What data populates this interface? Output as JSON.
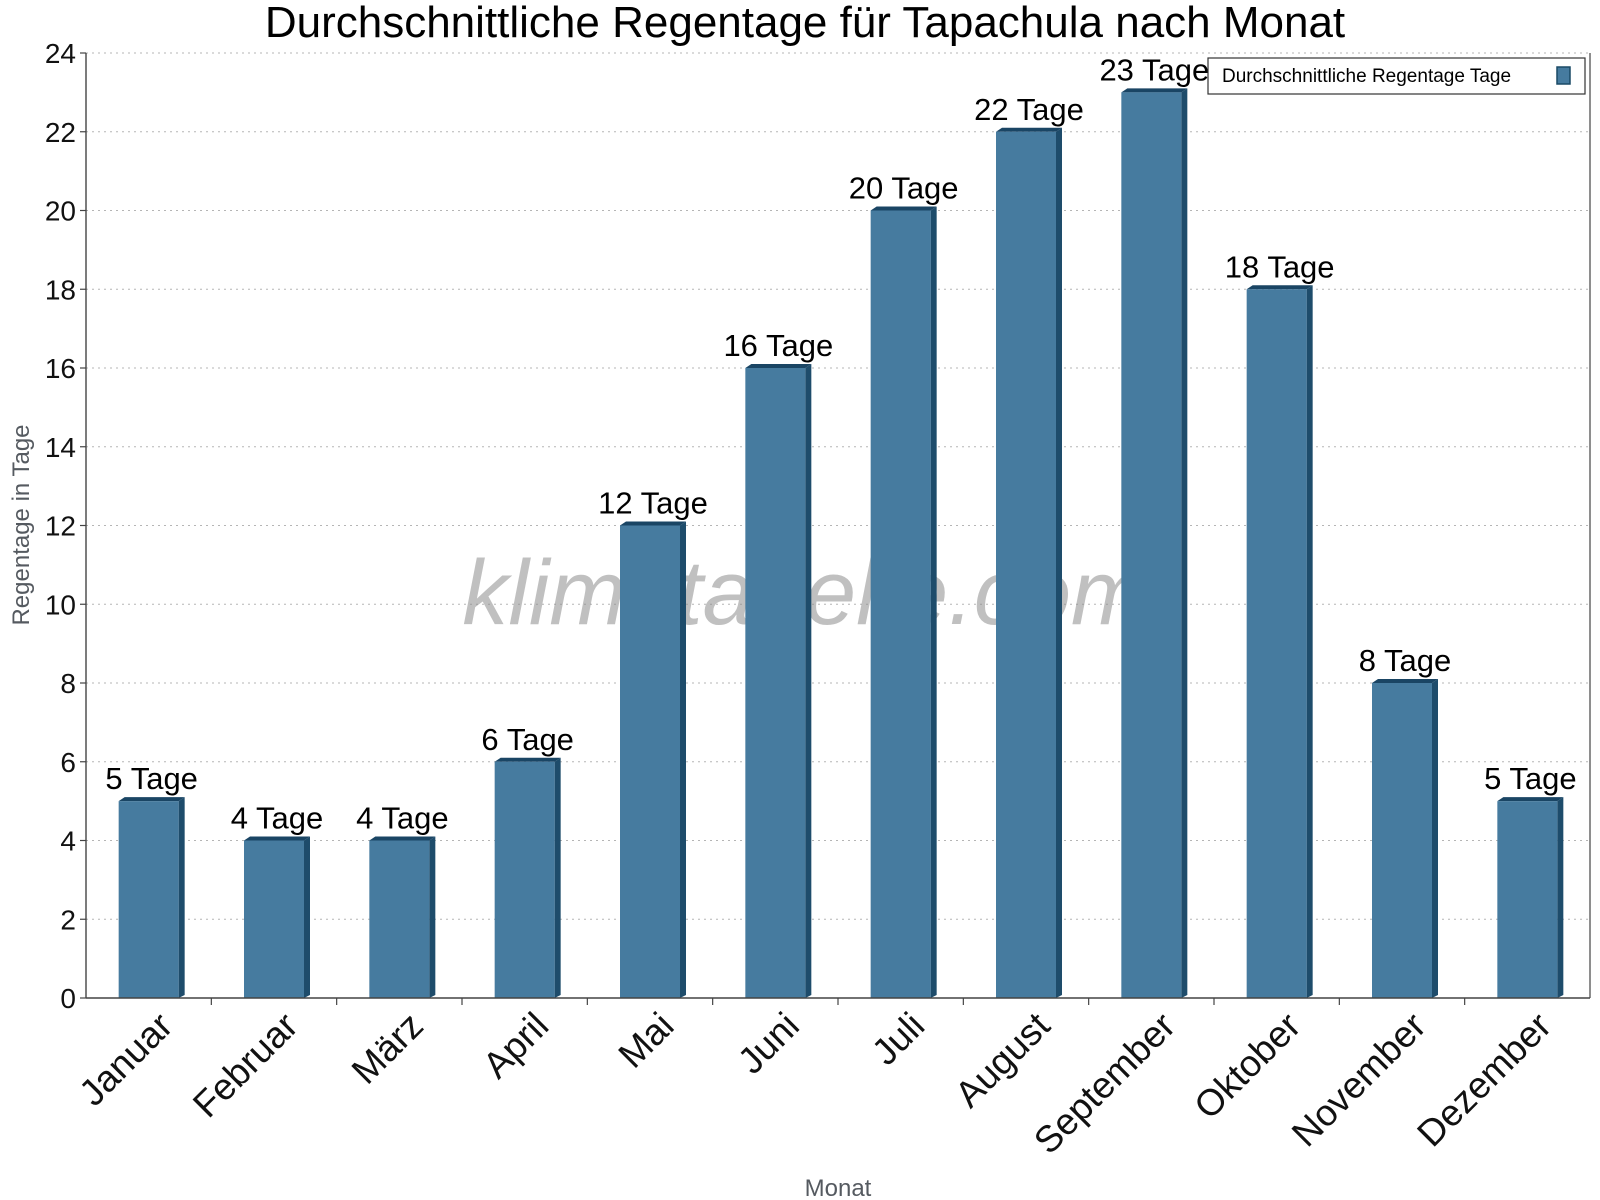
{
  "chart_data": {
    "type": "bar",
    "title": "Durchschnittliche Regentage für Tapachula nach Monat",
    "xlabel": "Monat",
    "ylabel": "Regentage in Tage",
    "categories": [
      "Januar",
      "Februar",
      "März",
      "April",
      "Mai",
      "Juni",
      "Juli",
      "August",
      "September",
      "Oktober",
      "November",
      "Dezember"
    ],
    "series": [
      {
        "name": "Durchschnittliche Regentage Tage",
        "values": [
          5,
          4,
          4,
          6,
          12,
          16,
          20,
          22,
          23,
          18,
          8,
          5
        ],
        "color": "#467b9f"
      }
    ],
    "data_labels": [
      "5 Tage",
      "4 Tage",
      "4 Tage",
      "6 Tage",
      "12 Tage",
      "16 Tage",
      "20 Tage",
      "22 Tage",
      "23 Tage",
      "18 Tage",
      "8 Tage",
      "5 Tage"
    ],
    "ylim": [
      0,
      24
    ],
    "yticks": [
      0,
      2,
      4,
      6,
      8,
      10,
      12,
      14,
      16,
      18,
      20,
      22,
      24
    ],
    "grid": true,
    "legend_position": "top-right",
    "watermark": "klimatabelle.com"
  }
}
